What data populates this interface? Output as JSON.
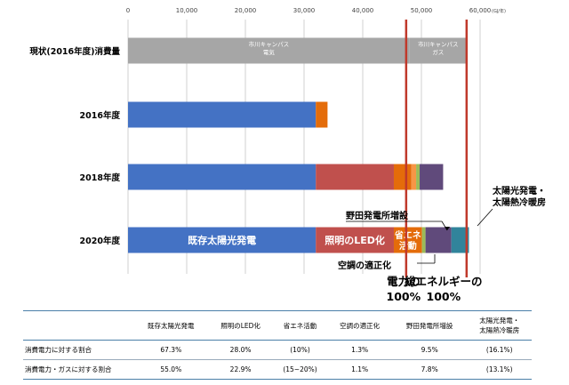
{
  "chart_data": {
    "type": "bar",
    "orientation": "horizontal",
    "stacked": true,
    "x_ticks": [
      "0",
      "10,000",
      "20,000",
      "30,000",
      "40,000",
      "50,000",
      "60,000"
    ],
    "x_unit": "(GJ/年)",
    "xlim": [
      0,
      60000
    ],
    "grid": true,
    "categories": [
      "現状(2016年度)消費量",
      "2016年度",
      "2018年度",
      "2020年度"
    ],
    "rows": [
      {
        "segments": [
          {
            "name": "市川キャンパス電気",
            "value": 48000,
            "color": "#a6a6a6",
            "label": "市川キャンパス\n電気"
          },
          {
            "name": "市川キャンパスガス",
            "value": 9700,
            "color": "#a6a6a6",
            "label": "市川キャンパス\nガス"
          }
        ]
      },
      {
        "segments": [
          {
            "name": "既存太陽光発電",
            "value": 32000,
            "color": "#4472c4"
          },
          {
            "name": "照明のLED化",
            "value": 2000,
            "color": "#e46c0a"
          }
        ]
      },
      {
        "segments": [
          {
            "name": "既存太陽光発電",
            "value": 32000,
            "color": "#4472c4"
          },
          {
            "name": "照明のLED化",
            "value": 13300,
            "color": "#c0504d"
          },
          {
            "name": "省エネ活動",
            "value": 3000,
            "color": "#e46c0a"
          },
          {
            "name": "省エネ活動2",
            "value": 800,
            "color": "#f79646"
          },
          {
            "name": "空調の適正化",
            "value": 600,
            "color": "#9bbb59"
          },
          {
            "name": "野田発電所増設",
            "value": 4000,
            "color": "#604a7b"
          }
        ]
      },
      {
        "segments": [
          {
            "name": "既存太陽光発電",
            "value": 32000,
            "color": "#4472c4",
            "label": "既存太陽光発電"
          },
          {
            "name": "照明のLED化",
            "value": 13300,
            "color": "#c0504d",
            "label": "照明のLED化"
          },
          {
            "name": "省エネ活動",
            "value": 4800,
            "color": "#e46c0a",
            "label": "省エネ\n活動"
          },
          {
            "name": "空調の適正化",
            "value": 600,
            "color": "#9bbb59"
          },
          {
            "name": "野田発電所増設",
            "value": 4400,
            "color": "#604a7b"
          },
          {
            "name": "太陽光発電・太陽熱冷暖房",
            "value": 3000,
            "color": "#31849b"
          }
        ]
      }
    ],
    "reference_lines": [
      {
        "value": 47400,
        "color": "#c0392b",
        "label": "電力の\n100%"
      },
      {
        "value": 57700,
        "color": "#c0392b",
        "label": "総エネルギーの\n100%"
      }
    ],
    "annotations": {
      "noda": "野田発電所増設",
      "solar": "太陽光発電・\n太陽熱冷暖房",
      "aircon": "空調の適正化"
    }
  },
  "table": {
    "headers": [
      "",
      "既存太陽光発電",
      "照明のLED化",
      "省エネ活動",
      "空調の適正化",
      "野田発電所増設",
      "太陽光発電・\n太陽熱冷暖房"
    ],
    "rows": [
      {
        "label": "消費電力に対する割合",
        "cells": [
          "67.3%",
          "28.0%",
          "(10%)",
          "1.3%",
          "9.5%",
          "(16.1%)"
        ]
      },
      {
        "label": "消費電力・ガスに対する割合",
        "cells": [
          "55.0%",
          "22.9%",
          "(15~20%)",
          "1.1%",
          "7.8%",
          "(13.1%)"
        ]
      }
    ]
  }
}
